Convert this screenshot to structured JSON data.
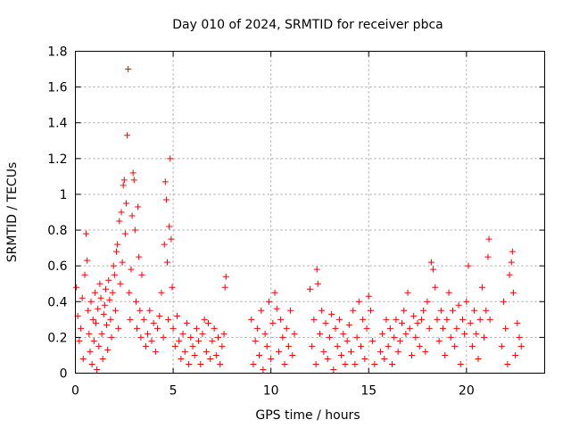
{
  "chart_data": {
    "type": "scatter",
    "title": "Day 010 of 2024, SRMTID for receiver pbca",
    "xlabel": "GPS time / hours",
    "ylabel": "SRMTID / TECUs",
    "xlim": [
      0,
      24
    ],
    "ylim": [
      0,
      1.8
    ],
    "xticks": [
      0,
      5,
      10,
      15,
      20
    ],
    "xtick_labels": [
      "0",
      "5",
      "10",
      "15",
      "20"
    ],
    "yticks": [
      0,
      0.2,
      0.4,
      0.6,
      0.8,
      1.0,
      1.2,
      1.4,
      1.6,
      1.8
    ],
    "ytick_labels": [
      "0",
      "0.2",
      "0.4",
      "0.6",
      "0.8",
      "1",
      "1.2",
      "1.4",
      "1.6",
      "1.8"
    ],
    "grid": true,
    "marker": "+",
    "color": "#ff0000",
    "points": [
      [
        0.05,
        0.48
      ],
      [
        0.12,
        0.32
      ],
      [
        0.2,
        0.18
      ],
      [
        0.28,
        0.25
      ],
      [
        0.35,
        0.42
      ],
      [
        0.4,
        0.08
      ],
      [
        0.48,
        0.55
      ],
      [
        0.55,
        0.78
      ],
      [
        0.6,
        0.63
      ],
      [
        0.65,
        0.35
      ],
      [
        0.7,
        0.22
      ],
      [
        0.75,
        0.12
      ],
      [
        0.8,
        0.4
      ],
      [
        0.85,
        0.05
      ],
      [
        0.9,
        0.3
      ],
      [
        0.95,
        0.18
      ],
      [
        1.0,
        0.45
      ],
      [
        1.05,
        0.28
      ],
      [
        1.1,
        0.02
      ],
      [
        1.15,
        0.36
      ],
      [
        1.2,
        0.15
      ],
      [
        1.25,
        0.5
      ],
      [
        1.3,
        0.42
      ],
      [
        1.35,
        0.22
      ],
      [
        1.4,
        0.08
      ],
      [
        1.45,
        0.33
      ],
      [
        1.5,
        0.38
      ],
      [
        1.55,
        0.47
      ],
      [
        1.6,
        0.27
      ],
      [
        1.65,
        0.13
      ],
      [
        1.7,
        0.52
      ],
      [
        1.75,
        0.41
      ],
      [
        1.8,
        0.3
      ],
      [
        1.85,
        0.2
      ],
      [
        1.9,
        0.45
      ],
      [
        1.95,
        0.6
      ],
      [
        2.0,
        0.55
      ],
      [
        2.05,
        0.35
      ],
      [
        2.1,
        0.68
      ],
      [
        2.15,
        0.72
      ],
      [
        2.2,
        0.25
      ],
      [
        2.25,
        0.85
      ],
      [
        2.3,
        0.5
      ],
      [
        2.35,
        0.9
      ],
      [
        2.4,
        0.62
      ],
      [
        2.45,
        1.05
      ],
      [
        2.5,
        1.08
      ],
      [
        2.55,
        0.78
      ],
      [
        2.6,
        0.95
      ],
      [
        2.65,
        1.33
      ],
      [
        2.7,
        1.7
      ],
      [
        2.75,
        0.45
      ],
      [
        2.8,
        0.3
      ],
      [
        2.85,
        0.58
      ],
      [
        2.9,
        0.88
      ],
      [
        2.95,
        1.12
      ],
      [
        3.0,
        1.08
      ],
      [
        3.05,
        0.8
      ],
      [
        3.1,
        0.4
      ],
      [
        3.15,
        0.25
      ],
      [
        3.2,
        0.93
      ],
      [
        3.25,
        0.65
      ],
      [
        3.3,
        0.35
      ],
      [
        3.35,
        0.2
      ],
      [
        3.4,
        0.55
      ],
      [
        3.5,
        0.3
      ],
      [
        3.6,
        0.15
      ],
      [
        3.7,
        0.22
      ],
      [
        3.8,
        0.35
      ],
      [
        3.9,
        0.18
      ],
      [
        4.0,
        0.28
      ],
      [
        4.1,
        0.12
      ],
      [
        4.2,
        0.25
      ],
      [
        4.3,
        0.32
      ],
      [
        4.4,
        0.45
      ],
      [
        4.5,
        0.2
      ],
      [
        4.55,
        0.72
      ],
      [
        4.6,
        1.07
      ],
      [
        4.65,
        0.97
      ],
      [
        4.7,
        0.62
      ],
      [
        4.75,
        0.3
      ],
      [
        4.8,
        0.82
      ],
      [
        4.85,
        1.2
      ],
      [
        4.9,
        0.75
      ],
      [
        4.95,
        0.48
      ],
      [
        5.0,
        0.25
      ],
      [
        5.1,
        0.15
      ],
      [
        5.2,
        0.32
      ],
      [
        5.3,
        0.18
      ],
      [
        5.4,
        0.08
      ],
      [
        5.5,
        0.22
      ],
      [
        5.6,
        0.12
      ],
      [
        5.7,
        0.28
      ],
      [
        5.8,
        0.05
      ],
      [
        5.9,
        0.2
      ],
      [
        6.0,
        0.15
      ],
      [
        6.1,
        0.1
      ],
      [
        6.2,
        0.25
      ],
      [
        6.3,
        0.18
      ],
      [
        6.4,
        0.05
      ],
      [
        6.5,
        0.22
      ],
      [
        6.6,
        0.3
      ],
      [
        6.7,
        0.12
      ],
      [
        6.8,
        0.28
      ],
      [
        6.9,
        0.08
      ],
      [
        7.0,
        0.18
      ],
      [
        7.1,
        0.25
      ],
      [
        7.2,
        0.1
      ],
      [
        7.3,
        0.2
      ],
      [
        7.4,
        0.05
      ],
      [
        7.5,
        0.15
      ],
      [
        7.6,
        0.22
      ],
      [
        7.65,
        0.48
      ],
      [
        7.7,
        0.54
      ],
      [
        9.0,
        0.3
      ],
      [
        9.1,
        0.05
      ],
      [
        9.2,
        0.18
      ],
      [
        9.3,
        0.25
      ],
      [
        9.4,
        0.1
      ],
      [
        9.5,
        0.35
      ],
      [
        9.6,
        0.02
      ],
      [
        9.7,
        0.22
      ],
      [
        9.8,
        0.15
      ],
      [
        9.9,
        0.4
      ],
      [
        10.0,
        0.08
      ],
      [
        10.1,
        0.28
      ],
      [
        10.2,
        0.45
      ],
      [
        10.3,
        0.36
      ],
      [
        10.4,
        0.12
      ],
      [
        10.5,
        0.3
      ],
      [
        10.6,
        0.2
      ],
      [
        10.7,
        0.05
      ],
      [
        10.8,
        0.25
      ],
      [
        10.9,
        0.15
      ],
      [
        11.0,
        0.35
      ],
      [
        11.1,
        0.1
      ],
      [
        11.2,
        0.22
      ],
      [
        12.0,
        0.47
      ],
      [
        12.1,
        0.15
      ],
      [
        12.2,
        0.3
      ],
      [
        12.3,
        0.05
      ],
      [
        12.35,
        0.58
      ],
      [
        12.4,
        0.5
      ],
      [
        12.5,
        0.22
      ],
      [
        12.6,
        0.35
      ],
      [
        12.7,
        0.12
      ],
      [
        12.8,
        0.28
      ],
      [
        12.9,
        0.08
      ],
      [
        13.0,
        0.2
      ],
      [
        13.1,
        0.33
      ],
      [
        13.2,
        0.02
      ],
      [
        13.3,
        0.25
      ],
      [
        13.4,
        0.15
      ],
      [
        13.5,
        0.3
      ],
      [
        13.6,
        0.1
      ],
      [
        13.7,
        0.22
      ],
      [
        13.8,
        0.05
      ],
      [
        13.9,
        0.18
      ],
      [
        14.0,
        0.27
      ],
      [
        14.1,
        0.12
      ],
      [
        14.2,
        0.35
      ],
      [
        14.3,
        0.05
      ],
      [
        14.4,
        0.2
      ],
      [
        14.5,
        0.4
      ],
      [
        14.6,
        0.15
      ],
      [
        14.7,
        0.3
      ],
      [
        14.8,
        0.08
      ],
      [
        14.9,
        0.25
      ],
      [
        15.0,
        0.43
      ],
      [
        15.1,
        0.35
      ],
      [
        15.2,
        0.18
      ],
      [
        15.3,
        0.05
      ],
      [
        15.6,
        0.12
      ],
      [
        15.7,
        0.22
      ],
      [
        15.8,
        0.08
      ],
      [
        15.9,
        0.3
      ],
      [
        16.0,
        0.15
      ],
      [
        16.1,
        0.25
      ],
      [
        16.2,
        0.05
      ],
      [
        16.3,
        0.2
      ],
      [
        16.4,
        0.3
      ],
      [
        16.5,
        0.12
      ],
      [
        16.6,
        0.18
      ],
      [
        16.7,
        0.28
      ],
      [
        16.8,
        0.35
      ],
      [
        16.9,
        0.22
      ],
      [
        17.0,
        0.45
      ],
      [
        17.1,
        0.25
      ],
      [
        17.2,
        0.1
      ],
      [
        17.3,
        0.32
      ],
      [
        17.4,
        0.2
      ],
      [
        17.5,
        0.28
      ],
      [
        17.6,
        0.15
      ],
      [
        17.7,
        0.3
      ],
      [
        17.8,
        0.35
      ],
      [
        17.9,
        0.12
      ],
      [
        18.0,
        0.4
      ],
      [
        18.1,
        0.25
      ],
      [
        18.2,
        0.62
      ],
      [
        18.3,
        0.58
      ],
      [
        18.4,
        0.48
      ],
      [
        18.5,
        0.3
      ],
      [
        18.6,
        0.18
      ],
      [
        18.7,
        0.35
      ],
      [
        18.8,
        0.25
      ],
      [
        18.9,
        0.1
      ],
      [
        19.0,
        0.3
      ],
      [
        19.1,
        0.45
      ],
      [
        19.2,
        0.2
      ],
      [
        19.3,
        0.35
      ],
      [
        19.4,
        0.15
      ],
      [
        19.5,
        0.25
      ],
      [
        19.6,
        0.38
      ],
      [
        19.7,
        0.05
      ],
      [
        19.8,
        0.3
      ],
      [
        19.9,
        0.22
      ],
      [
        20.0,
        0.4
      ],
      [
        20.1,
        0.6
      ],
      [
        20.2,
        0.28
      ],
      [
        20.3,
        0.15
      ],
      [
        20.4,
        0.35
      ],
      [
        20.5,
        0.22
      ],
      [
        20.6,
        0.08
      ],
      [
        20.7,
        0.3
      ],
      [
        20.8,
        0.48
      ],
      [
        20.9,
        0.2
      ],
      [
        21.0,
        0.35
      ],
      [
        21.1,
        0.65
      ],
      [
        21.15,
        0.75
      ],
      [
        21.2,
        0.3
      ],
      [
        21.8,
        0.15
      ],
      [
        21.9,
        0.4
      ],
      [
        22.0,
        0.25
      ],
      [
        22.1,
        0.05
      ],
      [
        22.2,
        0.55
      ],
      [
        22.3,
        0.62
      ],
      [
        22.35,
        0.68
      ],
      [
        22.4,
        0.45
      ],
      [
        22.5,
        0.1
      ],
      [
        22.6,
        0.28
      ],
      [
        22.7,
        0.2
      ],
      [
        22.8,
        0.15
      ]
    ]
  }
}
